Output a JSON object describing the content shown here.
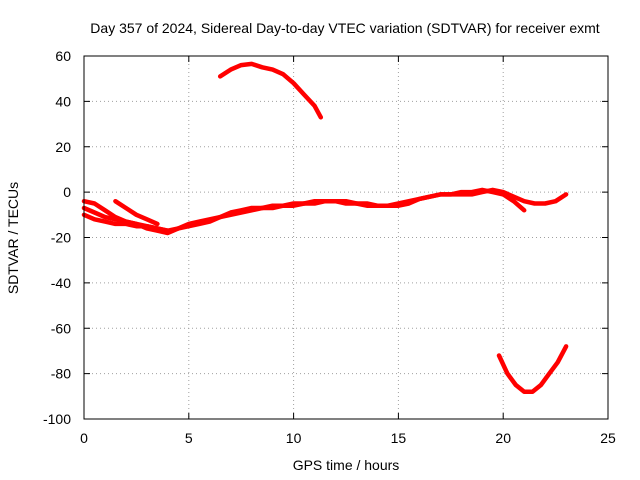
{
  "chart_data": {
    "type": "line",
    "title": "Day 357 of 2024, Sidereal Day-to-day VTEC variation (SDTVAR) for receiver exmt",
    "xlabel": "GPS time / hours",
    "ylabel": "SDTVAR / TECUs",
    "xlim": [
      0,
      25
    ],
    "ylim": [
      -100,
      60
    ],
    "xticks": [
      0,
      5,
      10,
      15,
      20,
      25
    ],
    "yticks": [
      -100,
      -80,
      -60,
      -40,
      -20,
      0,
      20,
      40,
      60
    ],
    "grid": true,
    "color": "#ff0000",
    "series": [
      {
        "name": "track-1",
        "x": [
          0.0,
          0.5,
          1.0,
          1.5,
          2.0,
          2.5,
          3.0,
          3.5,
          4.0,
          4.5,
          5.0,
          5.5,
          6.0,
          6.5,
          7.0,
          7.5,
          8.0,
          8.5,
          9.0,
          9.5,
          10.0,
          10.5,
          11.0,
          11.5,
          12.0,
          12.5,
          13.0,
          13.5,
          14.0,
          14.5,
          15.0,
          15.5,
          16.0,
          16.5,
          17.0,
          17.5,
          18.0,
          18.5,
          19.0,
          19.5,
          20.0,
          20.5,
          21.0,
          21.5,
          22.0,
          22.5,
          23.0
        ],
        "y": [
          -7,
          -9,
          -11,
          -12,
          -13,
          -14,
          -15,
          -16,
          -17,
          -16,
          -15,
          -14,
          -13,
          -11,
          -10,
          -9,
          -8,
          -7,
          -7,
          -6,
          -6,
          -5,
          -5,
          -4,
          -4,
          -5,
          -5,
          -6,
          -6,
          -6,
          -6,
          -5,
          -3,
          -2,
          -1,
          -1,
          -1,
          -1,
          0,
          1,
          0,
          -2,
          -4,
          -5,
          -5,
          -4,
          -1
        ]
      },
      {
        "name": "track-2",
        "x": [
          0.0,
          0.5,
          1.0,
          1.5,
          2.0,
          2.5,
          3.0,
          3.5,
          4.0,
          4.5,
          5.0,
          5.5,
          6.0,
          6.5,
          7.0,
          7.5,
          8.0,
          8.5,
          9.0,
          9.5,
          10.0,
          10.5,
          11.0,
          11.5,
          12.0,
          12.5,
          13.0,
          13.5,
          14.0,
          14.5,
          15.0,
          15.5,
          16.0,
          16.5,
          17.0,
          17.5,
          18.0,
          18.5,
          19.0,
          19.5,
          20.0,
          20.5,
          21.0
        ],
        "y": [
          -4,
          -5,
          -8,
          -11,
          -13,
          -14,
          -16,
          -17,
          -18,
          -16,
          -14,
          -13,
          -12,
          -11,
          -9,
          -8,
          -7,
          -7,
          -6,
          -6,
          -5,
          -5,
          -4,
          -4,
          -4,
          -4,
          -5,
          -5,
          -6,
          -6,
          -5,
          -4,
          -3,
          -2,
          -1,
          -1,
          0,
          0,
          1,
          0,
          -1,
          -4,
          -8
        ]
      },
      {
        "name": "track-3",
        "x": [
          0.0,
          0.5,
          1.0,
          1.5,
          2.0,
          2.5,
          3.0,
          3.5,
          4.0
        ],
        "y": [
          -10,
          -12,
          -13,
          -14,
          -14,
          -15,
          -15,
          -16,
          -17
        ]
      },
      {
        "name": "track-4",
        "x": [
          1.5,
          2.0,
          2.5,
          3.0,
          3.5
        ],
        "y": [
          -4,
          -7,
          -10,
          -12,
          -14
        ]
      },
      {
        "name": "track-5",
        "x": [
          6.5,
          7.0,
          7.5,
          8.0,
          8.5,
          9.0,
          9.5,
          10.0,
          10.5,
          11.0,
          11.3
        ],
        "y": [
          51,
          54,
          56,
          56.5,
          55,
          54,
          52,
          48,
          43,
          38,
          33
        ]
      },
      {
        "name": "track-6",
        "x": [
          19.8,
          20.2,
          20.6,
          21.0,
          21.4,
          21.8,
          22.2,
          22.6,
          23.0
        ],
        "y": [
          -72,
          -80,
          -85,
          -88,
          -88,
          -85,
          -80,
          -75,
          -68
        ]
      }
    ]
  }
}
